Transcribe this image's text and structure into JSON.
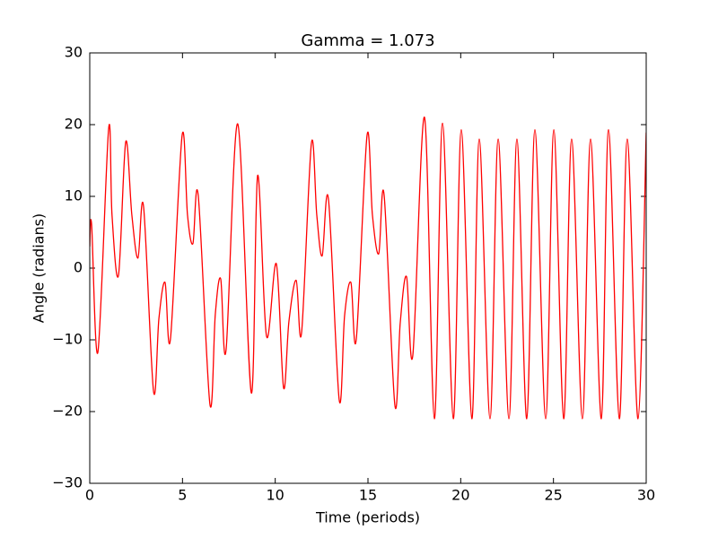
{
  "chart_data": {
    "type": "line",
    "title": "Gamma = 1.073",
    "x_label": "Time (periods)",
    "y_label": "Angle (radians)",
    "xlim": [
      0,
      30
    ],
    "ylim": [
      -30,
      30
    ],
    "xticks": [
      0,
      5,
      10,
      15,
      20,
      25,
      30
    ],
    "yticks": [
      {
        "value": -30,
        "label": "−30"
      },
      {
        "value": -20,
        "label": "−20"
      },
      {
        "value": -10,
        "label": "−10"
      },
      0,
      10,
      20,
      30
    ],
    "grid": false,
    "series": [
      {
        "color": "#ff0000",
        "x": [
          0,
          0.1,
          0.44,
          1.02,
          1.2,
          1.55,
          1.94,
          2.27,
          2.6,
          2.9,
          3.44,
          3.73,
          4.06,
          4.35,
          4.98,
          5.27,
          5.56,
          5.85,
          6.48,
          6.77,
          7.06,
          7.35,
          7.98,
          8.71,
          9.05,
          9.53,
          10.06,
          10.45,
          10.74,
          11.13,
          11.42,
          11.95,
          12.24,
          12.53,
          12.87,
          13.45,
          13.74,
          14.08,
          14.37,
          14.95,
          15.24,
          15.58,
          15.87,
          16.45,
          16.74,
          17.08,
          17.42,
          18.05,
          18.58,
          19.02,
          19.6,
          20.03,
          20.6,
          21.0,
          21.58,
          22.02,
          22.6,
          23.03,
          23.56,
          24.0,
          24.58,
          25.02,
          25.55,
          25.98,
          26.56,
          27.0,
          27.58,
          27.97,
          28.55,
          28.98,
          29.56,
          30.0
        ],
        "values": [
          3,
          6.1,
          -11.7,
          19.5,
          7.4,
          -1,
          17.6,
          7.4,
          1.4,
          8.6,
          -17.2,
          -7,
          -2,
          -9.9,
          18.5,
          7.4,
          3.4,
          10.1,
          -19,
          -6.4,
          -1.5,
          -11.4,
          20.1,
          -17.4,
          12.9,
          -9.5,
          0.6,
          -16.7,
          -7.4,
          -1.7,
          -9,
          17.4,
          7.4,
          1.7,
          9.6,
          -18.4,
          -6.6,
          -2,
          -9.9,
          18.5,
          7.4,
          2,
          10.2,
          -19.1,
          -7.6,
          -1.2,
          -12.1,
          21,
          -21,
          20.2,
          -21,
          19.3,
          -21,
          18,
          -21,
          18,
          -21,
          18,
          -21,
          19.3,
          -21,
          19.3,
          -21,
          18,
          -21,
          18,
          -21,
          19.3,
          -21,
          18,
          -21,
          18.9
        ]
      }
    ]
  }
}
